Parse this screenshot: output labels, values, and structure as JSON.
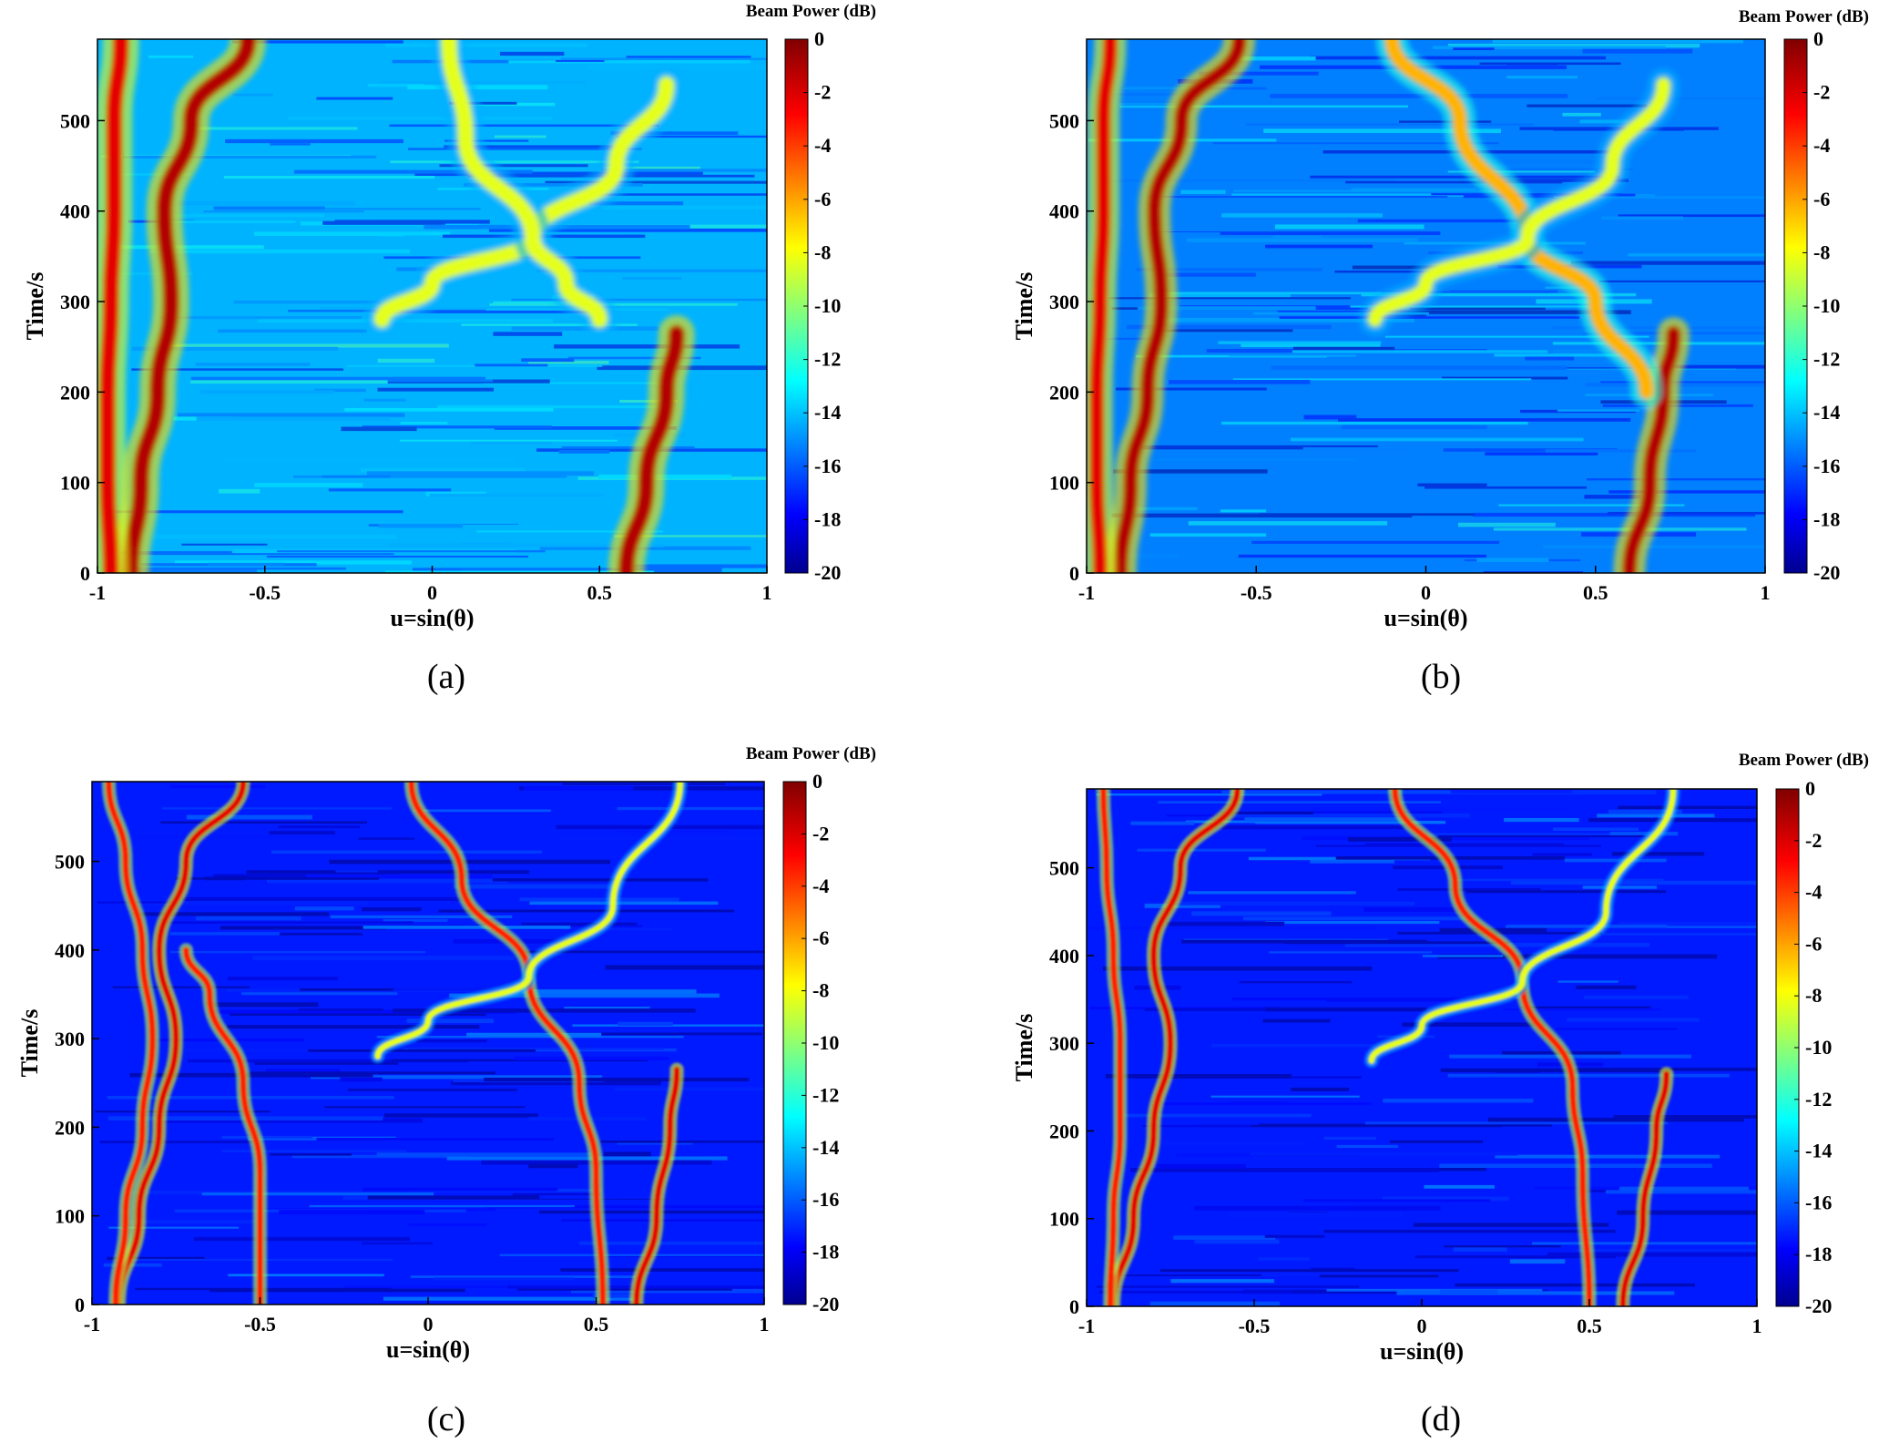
{
  "chart_data": [
    {
      "type": "heatmap",
      "panel_label": "(a)",
      "xlabel": "u=sin(θ)",
      "ylabel": "Time/s",
      "xlim": [
        -1,
        1
      ],
      "ylim": [
        0,
        590
      ],
      "x_ticks": [
        "-1",
        "-0.5",
        "0",
        "0.5",
        "1"
      ],
      "y_ticks": [
        "0",
        "100",
        "200",
        "300",
        "400",
        "500"
      ],
      "colorbar": {
        "title": "Beam Power (dB)",
        "range": [
          -20,
          0
        ],
        "ticks": [
          "0",
          "-2",
          "-4",
          "-6",
          "-8",
          "-10",
          "-12",
          "-14",
          "-16",
          "-18",
          "-20"
        ]
      },
      "tracks": [
        {
          "u": [
            -0.9,
            -0.87,
            -0.82,
            -0.78,
            -0.8,
            -0.72,
            -0.55
          ],
          "t": [
            0,
            100,
            200,
            300,
            400,
            500,
            590
          ],
          "level_db": -1
        },
        {
          "u": [
            -0.96,
            -0.97,
            -0.97,
            -0.96,
            -0.95,
            -0.95,
            -0.93
          ],
          "t": [
            0,
            100,
            200,
            300,
            400,
            500,
            590
          ],
          "level_db": -2
        },
        {
          "u": [
            0.58,
            0.64,
            0.7,
            0.73
          ],
          "t": [
            0,
            100,
            200,
            265
          ],
          "level_db": -1
        },
        {
          "u": [
            -0.15,
            0.0,
            0.3,
            0.55,
            0.7
          ],
          "t": [
            280,
            320,
            370,
            450,
            540
          ],
          "level_db": -8
        },
        {
          "u": [
            0.5,
            0.4,
            0.3,
            0.1,
            0.05
          ],
          "t": [
            280,
            320,
            370,
            480,
            590
          ],
          "level_db": -8
        }
      ]
    },
    {
      "type": "heatmap",
      "panel_label": "(b)",
      "xlabel": "u=sin(θ)",
      "ylabel": "Time/s",
      "xlim": [
        -1,
        1
      ],
      "ylim": [
        0,
        590
      ],
      "x_ticks": [
        "-1",
        "-0.5",
        "0",
        "0.5",
        "1"
      ],
      "y_ticks": [
        "0",
        "100",
        "200",
        "300",
        "400",
        "500"
      ],
      "colorbar": {
        "title": "Beam Power (dB)",
        "range": [
          -20,
          0
        ],
        "ticks": [
          "0",
          "-2",
          "-4",
          "-6",
          "-8",
          "-10",
          "-12",
          "-14",
          "-16",
          "-18",
          "-20"
        ]
      },
      "tracks": [
        {
          "u": [
            -0.9,
            -0.87,
            -0.82,
            -0.78,
            -0.8,
            -0.72,
            -0.55
          ],
          "t": [
            0,
            100,
            200,
            300,
            400,
            500,
            590
          ],
          "level_db": -1
        },
        {
          "u": [
            -0.96,
            -0.97,
            -0.97,
            -0.96,
            -0.95,
            -0.95,
            -0.93
          ],
          "t": [
            0,
            100,
            200,
            300,
            400,
            500,
            590
          ],
          "level_db": -2
        },
        {
          "u": [
            0.6,
            0.66,
            0.7,
            0.73
          ],
          "t": [
            0,
            100,
            200,
            265
          ],
          "level_db": -1
        },
        {
          "u": [
            -0.1,
            0.1,
            0.3,
            0.5,
            0.65
          ],
          "t": [
            590,
            500,
            370,
            300,
            200
          ],
          "level_db": -6
        },
        {
          "u": [
            -0.15,
            0.0,
            0.3,
            0.55,
            0.7
          ],
          "t": [
            280,
            320,
            370,
            450,
            540
          ],
          "level_db": -8
        }
      ]
    },
    {
      "type": "heatmap",
      "panel_label": "(c)",
      "xlabel": "u=sin(θ)",
      "ylabel": "Time/s",
      "xlim": [
        -1,
        1
      ],
      "ylim": [
        0,
        590
      ],
      "x_ticks": [
        "-1",
        "-0.5",
        "0",
        "0.5",
        "1"
      ],
      "y_ticks": [
        "0",
        "100",
        "200",
        "300",
        "400",
        "500"
      ],
      "colorbar": {
        "title": "Beam Power (dB)",
        "range": [
          -20,
          0
        ],
        "ticks": [
          "0",
          "-2",
          "-4",
          "-6",
          "-8",
          "-10",
          "-12",
          "-14",
          "-16",
          "-18",
          "-20"
        ]
      },
      "tracks": [
        {
          "u": [
            -0.92,
            -0.86,
            -0.8,
            -0.75,
            -0.8,
            -0.72,
            -0.55
          ],
          "t": [
            0,
            100,
            200,
            300,
            400,
            500,
            590
          ],
          "level_db": -2
        },
        {
          "u": [
            -0.93,
            -0.9,
            -0.85,
            -0.82,
            -0.85,
            -0.9,
            -0.95
          ],
          "t": [
            0,
            100,
            200,
            300,
            400,
            500,
            590
          ],
          "level_db": -3
        },
        {
          "u": [
            -0.5,
            -0.5,
            -0.55,
            -0.65,
            -0.72
          ],
          "t": [
            0,
            150,
            250,
            350,
            400
          ],
          "level_db": -3
        },
        {
          "u": [
            0.62,
            0.68,
            0.72,
            0.74
          ],
          "t": [
            0,
            100,
            200,
            265
          ],
          "level_db": -2
        },
        {
          "u": [
            0.52,
            0.5,
            0.45,
            0.3,
            0.1,
            -0.05
          ],
          "t": [
            0,
            150,
            250,
            370,
            480,
            590
          ],
          "level_db": -3
        },
        {
          "u": [
            -0.15,
            0.0,
            0.3,
            0.55,
            0.75
          ],
          "t": [
            280,
            320,
            370,
            450,
            590
          ],
          "level_db": -8
        }
      ]
    },
    {
      "type": "heatmap",
      "panel_label": "(d)",
      "xlabel": "u=sin(θ)",
      "ylabel": "Time/s",
      "xlim": [
        -1,
        1
      ],
      "ylim": [
        0,
        590
      ],
      "x_ticks": [
        "-1",
        "-0.5",
        "0",
        "0.5",
        "1"
      ],
      "y_ticks": [
        "0",
        "100",
        "200",
        "300",
        "400",
        "500"
      ],
      "colorbar": {
        "title": "Beam Power (dB)",
        "range": [
          -20,
          0
        ],
        "ticks": [
          "0",
          "-2",
          "-4",
          "-6",
          "-8",
          "-10",
          "-12",
          "-14",
          "-16",
          "-18",
          "-20"
        ]
      },
      "tracks": [
        {
          "u": [
            -0.92,
            -0.86,
            -0.8,
            -0.75,
            -0.8,
            -0.72,
            -0.55
          ],
          "t": [
            0,
            100,
            200,
            300,
            400,
            500,
            590
          ],
          "level_db": -2
        },
        {
          "u": [
            -0.93,
            -0.92,
            -0.9,
            -0.9,
            -0.92,
            -0.94,
            -0.95
          ],
          "t": [
            0,
            100,
            200,
            300,
            400,
            500,
            590
          ],
          "level_db": -3
        },
        {
          "u": [
            0.6,
            0.66,
            0.7,
            0.73
          ],
          "t": [
            0,
            100,
            200,
            265
          ],
          "level_db": -2
        },
        {
          "u": [
            0.5,
            0.48,
            0.45,
            0.3,
            0.1,
            -0.08
          ],
          "t": [
            0,
            150,
            250,
            370,
            480,
            590
          ],
          "level_db": -3
        },
        {
          "u": [
            -0.15,
            0.0,
            0.3,
            0.55,
            0.75
          ],
          "t": [
            280,
            320,
            370,
            450,
            590
          ],
          "level_db": -8
        }
      ]
    }
  ]
}
